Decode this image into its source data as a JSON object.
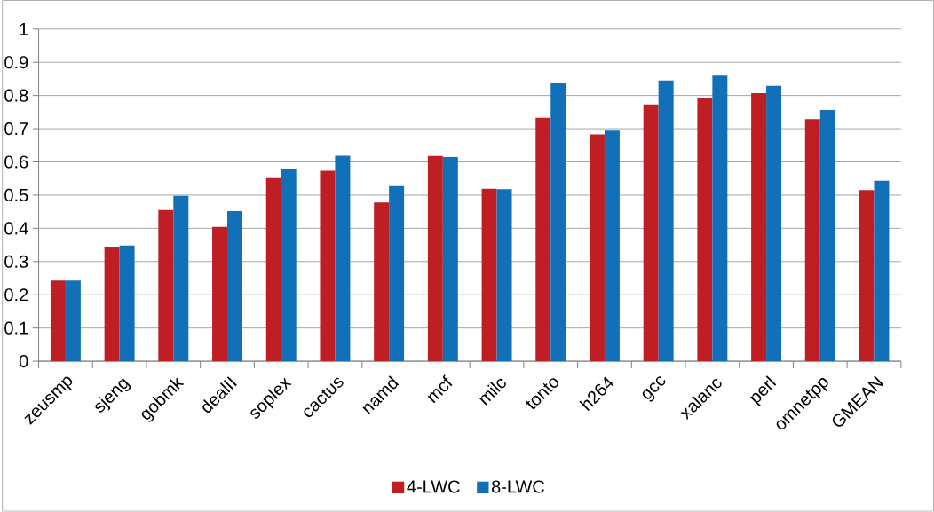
{
  "chart_data": {
    "type": "bar",
    "categories": [
      "zeusmp",
      "sjeng",
      "gobmk",
      "dealII",
      "soplex",
      "cactus",
      "namd",
      "mcf",
      "milc",
      "tonto",
      "h264",
      "gcc",
      "xalanc",
      "perl",
      "omnetpp",
      "GMEAN"
    ],
    "series": [
      {
        "name": "4-LWC",
        "color": "#be1e24",
        "values": [
          0.243,
          0.345,
          0.455,
          0.404,
          0.551,
          0.573,
          0.478,
          0.618,
          0.519,
          0.733,
          0.683,
          0.773,
          0.792,
          0.807,
          0.729,
          0.515
        ]
      },
      {
        "name": "8-LWC",
        "color": "#1170b8",
        "values": [
          0.243,
          0.348,
          0.498,
          0.452,
          0.578,
          0.619,
          0.527,
          0.615,
          0.518,
          0.837,
          0.694,
          0.845,
          0.86,
          0.829,
          0.756,
          0.543
        ]
      }
    ],
    "ylim": [
      0,
      1
    ],
    "yticks": [
      0,
      0.1,
      0.2,
      0.3,
      0.4,
      0.5,
      0.6,
      0.7,
      0.8,
      0.9,
      1
    ],
    "grid": "y",
    "legend": "bottom"
  }
}
